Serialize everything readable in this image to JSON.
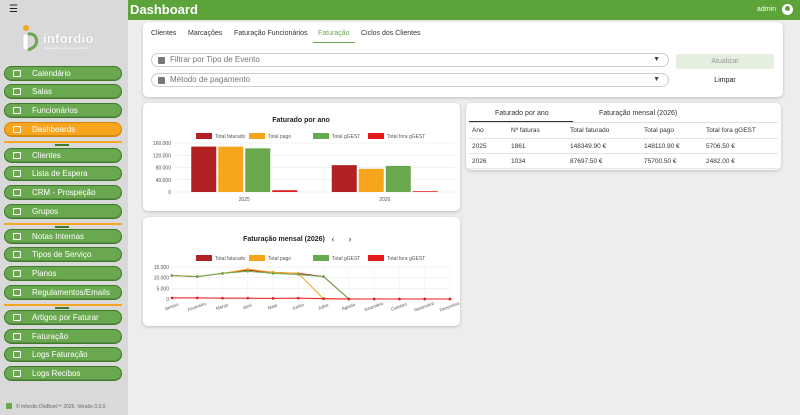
{
  "colors": {
    "green": "#6aa84f",
    "orange": "#f7a51c",
    "red_dark": "#b22222",
    "red": "#e31a1c"
  },
  "sidebar": {
    "logo_text": "infordio",
    "logo_tagline": "Advanced Development Solutions",
    "items": [
      {
        "label": "Calendário",
        "icon": "calendar-icon"
      },
      {
        "label": "Salas",
        "icon": "door-icon"
      },
      {
        "label": "Funcionários",
        "icon": "user-icon"
      },
      {
        "label": "Dashboards",
        "icon": "chart-icon",
        "active": true
      },
      {
        "label": "Clientes",
        "icon": "users-icon"
      },
      {
        "label": "Lista de Espera",
        "icon": "clock-icon"
      },
      {
        "label": "CRM - Prospeção",
        "icon": "megaphone-icon"
      },
      {
        "label": "Grupos",
        "icon": "group-icon"
      },
      {
        "label": "Notas Internas",
        "icon": "note-icon"
      },
      {
        "label": "Tipos de Serviço",
        "icon": "list-icon"
      },
      {
        "label": "Planos",
        "icon": "plan-icon"
      },
      {
        "label": "Regulamentos/Emails",
        "icon": "mail-icon"
      },
      {
        "label": "Artigos por Faturar",
        "icon": "article-icon"
      },
      {
        "label": "Faturação",
        "icon": "invoice-icon"
      },
      {
        "label": "Logs Faturação",
        "icon": "log-icon"
      },
      {
        "label": "Logs Recibos",
        "icon": "receipt-icon"
      }
    ],
    "footer": "© Infordio DioBoot™ 2026. Versão 3.3.0."
  },
  "header": {
    "title": "Dashboard",
    "user": "admin"
  },
  "tabs": [
    "Clientes",
    "Marcações",
    "Faturação Funcionários",
    "Faturação",
    "Ciclos dos Clientes"
  ],
  "filters": {
    "event_type_placeholder": "Filtrar por Tipo de Evento",
    "payment_placeholder": "Método de pagamento",
    "update_label": "Atualizar",
    "clear_label": "Limpar"
  },
  "table_card": {
    "tabs": [
      "Faturado por ano",
      "Faturação mensal (2026)"
    ],
    "columns": [
      "Ano",
      "Nº faturas",
      "Total faturado",
      "Total pago",
      "Total fora gGEST"
    ],
    "rows": [
      [
        "2025",
        "1861",
        "148349.90 €",
        "148110.90 €",
        "5706.50 €"
      ],
      [
        "2026",
        "1034",
        "87697.50 €",
        "75700.50 €",
        "2482.00 €"
      ]
    ]
  },
  "chart_data": [
    {
      "type": "bar",
      "title": "Faturado por ano",
      "categories": [
        "2025",
        "2026"
      ],
      "series": [
        {
          "name": "Total faturado",
          "color": "#b22222",
          "values": [
            148349.9,
            87697.5
          ]
        },
        {
          "name": "Total pago",
          "color": "#f7a51c",
          "values": [
            148110.9,
            75700.5
          ]
        },
        {
          "name": "Total gGEST",
          "color": "#6aa84f",
          "values": [
            142643.4,
            85215.5
          ]
        },
        {
          "name": "Total fora gGEST",
          "color": "#e31a1c",
          "values": [
            5706.5,
            2482.0
          ]
        }
      ],
      "ylim": [
        0,
        160000
      ],
      "yticks": [
        "0",
        "40.000",
        "80.000",
        "120.000",
        "160.000"
      ],
      "legend": "top"
    },
    {
      "type": "line",
      "title": "Faturação mensal (2026)",
      "prev_label": "‹",
      "next_label": "›",
      "categories": [
        "Janeiro",
        "Fevereiro",
        "Março",
        "Abril",
        "Maio",
        "Junho",
        "Julho",
        "Agosto",
        "Setembro",
        "Outubro",
        "Novembro",
        "Dezembro"
      ],
      "series": [
        {
          "name": "Total faturado",
          "color": "#b22222",
          "values": [
            11000,
            10500,
            12000,
            13500,
            12500,
            12000,
            10500,
            0,
            0,
            0,
            0,
            0
          ]
        },
        {
          "name": "Total pago",
          "color": "#f7a51c",
          "values": [
            11000,
            10500,
            12000,
            14000,
            12500,
            12000,
            0,
            0,
            0,
            0,
            0,
            0
          ]
        },
        {
          "name": "Total gGEST",
          "color": "#6aa84f",
          "values": [
            11000,
            10500,
            12000,
            13000,
            12000,
            11500,
            10500,
            0,
            0,
            0,
            0,
            0
          ]
        },
        {
          "name": "Total fora gGEST",
          "color": "#e31a1c",
          "values": [
            500,
            500,
            400,
            400,
            300,
            400,
            200,
            0,
            0,
            0,
            0,
            0
          ]
        }
      ],
      "ylim": [
        0,
        15000
      ],
      "yticks": [
        "0",
        "5.000",
        "10.000",
        "15.000"
      ],
      "legend": "top"
    }
  ]
}
